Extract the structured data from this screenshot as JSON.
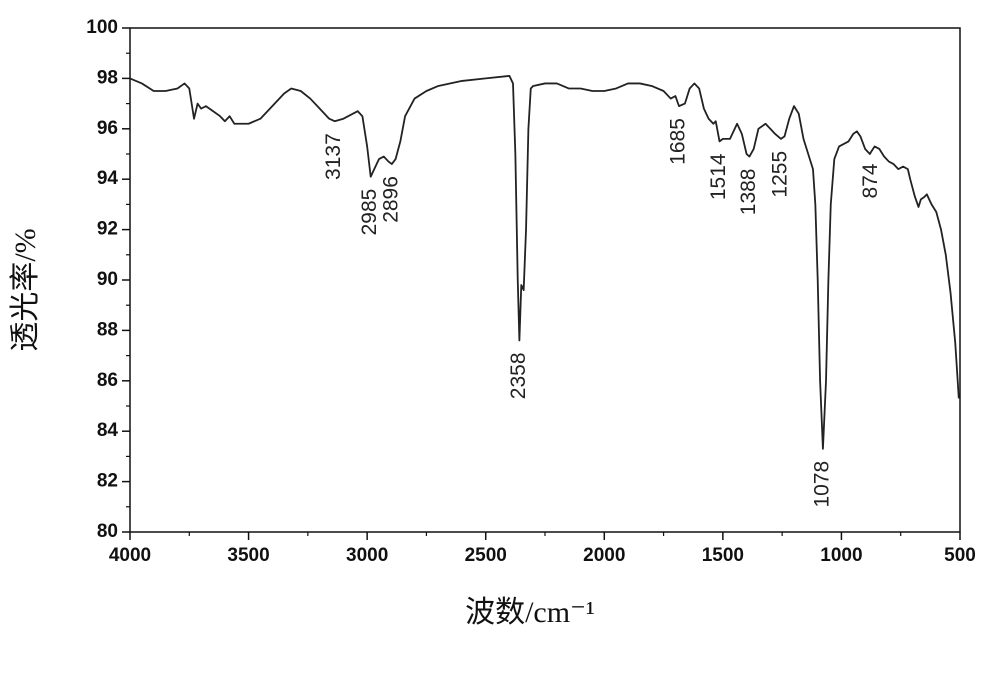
{
  "chart_data": {
    "type": "line",
    "xlabel": "波数/cm⁻¹",
    "ylabel": "透光率/%",
    "xlim": [
      4000,
      500
    ],
    "xticks": [
      4000,
      3500,
      3000,
      2500,
      2000,
      1500,
      1000,
      500
    ],
    "ylim": [
      80,
      100
    ],
    "yticks": [
      80,
      82,
      84,
      86,
      88,
      90,
      92,
      94,
      96,
      98,
      100
    ],
    "series": [
      {
        "color": "#222222",
        "x": [
          4000,
          3950,
          3900,
          3850,
          3800,
          3770,
          3750,
          3730,
          3715,
          3700,
          3680,
          3650,
          3620,
          3600,
          3580,
          3560,
          3500,
          3450,
          3400,
          3350,
          3320,
          3280,
          3240,
          3200,
          3160,
          3137,
          3100,
          3060,
          3040,
          3020,
          3000,
          2985,
          2970,
          2950,
          2930,
          2910,
          2896,
          2880,
          2860,
          2840,
          2800,
          2750,
          2700,
          2600,
          2500,
          2400,
          2385,
          2375,
          2365,
          2358,
          2350,
          2340,
          2330,
          2320,
          2310,
          2300,
          2250,
          2200,
          2150,
          2100,
          2050,
          2000,
          1950,
          1900,
          1850,
          1800,
          1750,
          1720,
          1700,
          1685,
          1660,
          1640,
          1620,
          1600,
          1580,
          1560,
          1540,
          1530,
          1514,
          1500,
          1470,
          1440,
          1420,
          1400,
          1388,
          1370,
          1350,
          1320,
          1300,
          1280,
          1255,
          1240,
          1220,
          1200,
          1180,
          1160,
          1140,
          1120,
          1110,
          1100,
          1090,
          1078,
          1065,
          1055,
          1045,
          1030,
          1010,
          990,
          970,
          950,
          935,
          920,
          900,
          880,
          874,
          860,
          840,
          820,
          800,
          780,
          760,
          740,
          720,
          710,
          690,
          675,
          665,
          650,
          640,
          620,
          600,
          580,
          560,
          540,
          520,
          505
        ],
        "values": [
          98.0,
          97.8,
          97.5,
          97.5,
          97.6,
          97.8,
          97.6,
          96.4,
          97.0,
          96.8,
          96.9,
          96.7,
          96.5,
          96.3,
          96.5,
          96.2,
          96.2,
          96.4,
          96.9,
          97.4,
          97.6,
          97.5,
          97.2,
          96.8,
          96.4,
          96.3,
          96.4,
          96.6,
          96.7,
          96.5,
          95.3,
          94.1,
          94.4,
          94.8,
          94.9,
          94.7,
          94.6,
          94.8,
          95.5,
          96.5,
          97.2,
          97.5,
          97.7,
          97.9,
          98.0,
          98.1,
          97.8,
          95.0,
          90.0,
          87.6,
          89.8,
          89.6,
          92.0,
          96.0,
          97.6,
          97.7,
          97.8,
          97.8,
          97.6,
          97.6,
          97.5,
          97.5,
          97.6,
          97.8,
          97.8,
          97.7,
          97.5,
          97.2,
          97.3,
          96.9,
          97.0,
          97.6,
          97.8,
          97.6,
          96.8,
          96.4,
          96.2,
          96.3,
          95.5,
          95.6,
          95.6,
          96.2,
          95.8,
          95.0,
          94.9,
          95.2,
          96.0,
          96.2,
          96.0,
          95.8,
          95.6,
          95.7,
          96.4,
          96.9,
          96.6,
          95.6,
          95.0,
          94.4,
          93.0,
          90.0,
          86.0,
          83.3,
          86.0,
          90.0,
          93.0,
          94.8,
          95.3,
          95.4,
          95.5,
          95.8,
          95.9,
          95.7,
          95.2,
          95.0,
          95.1,
          95.3,
          95.2,
          94.9,
          94.7,
          94.6,
          94.4,
          94.5,
          94.4,
          94.0,
          93.3,
          92.9,
          93.2,
          93.3,
          93.4,
          93.0,
          92.7,
          92.0,
          91.0,
          89.5,
          87.5,
          85.3
        ]
      }
    ],
    "annotations": [
      {
        "label": "3137",
        "x": 3137
      },
      {
        "label": "2985",
        "x": 2985
      },
      {
        "label": "2896",
        "x": 2896
      },
      {
        "label": "2358",
        "x": 2358
      },
      {
        "label": "1685",
        "x": 1685
      },
      {
        "label": "1514",
        "x": 1514
      },
      {
        "label": "1388",
        "x": 1388
      },
      {
        "label": "1255",
        "x": 1255
      },
      {
        "label": "1078",
        "x": 1078
      },
      {
        "label": "874",
        "x": 874
      }
    ]
  }
}
